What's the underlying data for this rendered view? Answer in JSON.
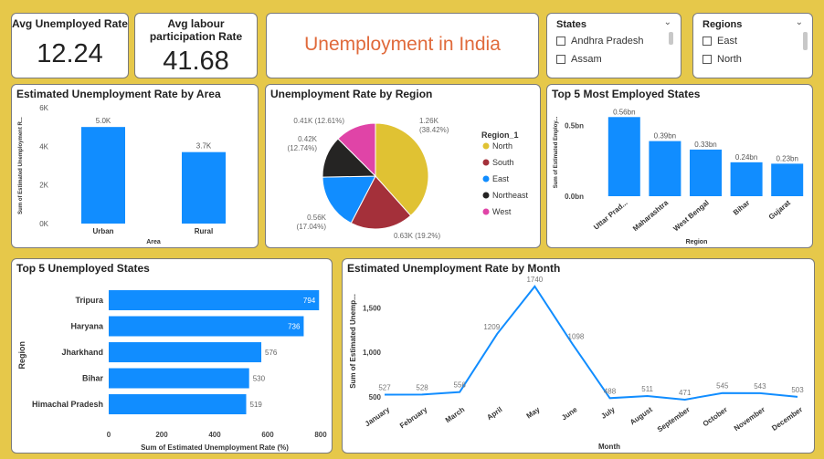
{
  "kpis": {
    "avg_unemployed": {
      "label": "Avg Unemployed Rate",
      "value": "12.24"
    },
    "avg_labour": {
      "label": "Avg labour participation Rate",
      "value": "41.68"
    }
  },
  "dashboard_title": "Unemployment in India",
  "slicers": {
    "states": {
      "title": "States",
      "items": [
        "Andhra Pradesh",
        "Assam"
      ]
    },
    "regions": {
      "title": "Regions",
      "items": [
        "East",
        "North"
      ]
    }
  },
  "chart_data": [
    {
      "id": "area",
      "type": "bar",
      "title": "Estimated Unemployment Rate by Area",
      "categories": [
        "Urban",
        "Rural"
      ],
      "values": [
        5000,
        3700
      ],
      "data_labels": [
        "5.0K",
        "3.7K"
      ],
      "xlabel": "Area",
      "ylabel": "Sum of Estimated Unemployment R...",
      "yticks": [
        {
          "v": 0,
          "label": "0K"
        },
        {
          "v": 2000,
          "label": "2K"
        },
        {
          "v": 4000,
          "label": "4K"
        },
        {
          "v": 6000,
          "label": "6K"
        }
      ],
      "ylim": [
        0,
        6000
      ],
      "color": "#118dff"
    },
    {
      "id": "region",
      "type": "pie",
      "title": "Unemployment Rate by Region",
      "legend_title": "Region_1",
      "legend_position": "right",
      "slices": [
        {
          "name": "North",
          "value": 1260,
          "label": "1.26K (38.42%)",
          "color": "#e0c233"
        },
        {
          "name": "South",
          "value": 630,
          "label": "0.63K (19.2%)",
          "color": "#a4303a"
        },
        {
          "name": "East",
          "value": 560,
          "label": "0.56K (17.04%)",
          "color": "#118dff"
        },
        {
          "name": "Northeast",
          "value": 420,
          "label": "0.42K (12.74%)",
          "color": "#252423"
        },
        {
          "name": "West",
          "value": 410,
          "label": "0.41K (12.61%)",
          "color": "#e044a7"
        }
      ]
    },
    {
      "id": "top5employed",
      "type": "bar",
      "title": "Top 5 Most Employed States",
      "categories": [
        "Uttar Prad...",
        "Maharashtra",
        "West Bengal",
        "Bihar",
        "Gujarat"
      ],
      "values": [
        0.56,
        0.39,
        0.33,
        0.24,
        0.23
      ],
      "data_labels": [
        "0.56bn",
        "0.39bn",
        "0.33bn",
        "0.24bn",
        "0.23bn"
      ],
      "xlabel": "Region",
      "ylabel": "Sum of Estimated Employ...",
      "yticks": [
        {
          "v": 0,
          "label": "0.0bn"
        },
        {
          "v": 0.5,
          "label": "0.5bn"
        }
      ],
      "ylim": [
        0,
        0.62
      ],
      "color": "#118dff"
    },
    {
      "id": "top5unemployed",
      "type": "bar",
      "orientation": "horizontal",
      "title": "Top 5 Unemployed States",
      "categories": [
        "Tripura",
        "Haryana",
        "Jharkhand",
        "Bihar",
        "Himachal Pradesh"
      ],
      "values": [
        794,
        736,
        576,
        530,
        519
      ],
      "data_labels": [
        "794",
        "736",
        "576",
        "530",
        "519"
      ],
      "xlabel": "Sum of Estimated Unemployment Rate (%)",
      "ylabel": "Region",
      "xticks": [
        0,
        200,
        400,
        600,
        800
      ],
      "xlim": [
        0,
        800
      ],
      "color": "#118dff"
    },
    {
      "id": "month",
      "type": "line",
      "title": "Estimated Unemployment Rate by Month",
      "x": [
        "January",
        "February",
        "March",
        "April",
        "May",
        "June",
        "July",
        "August",
        "September",
        "October",
        "November",
        "December"
      ],
      "values": [
        527,
        528,
        556,
        1209,
        1740,
        1098,
        488,
        511,
        471,
        545,
        543,
        503
      ],
      "data_labels": [
        "527",
        "528",
        "556",
        "1209",
        "1740",
        "1098",
        "488",
        "511",
        "471",
        "545",
        "543",
        "503"
      ],
      "xlabel": "Month",
      "ylabel": "Sum of Estimated Unemp...",
      "yticks": [
        {
          "v": 500,
          "label": "500"
        },
        {
          "v": 1000,
          "label": "1,000"
        },
        {
          "v": 1500,
          "label": "1,500"
        }
      ],
      "ylim": [
        450,
        1800
      ],
      "color": "#118dff"
    }
  ]
}
